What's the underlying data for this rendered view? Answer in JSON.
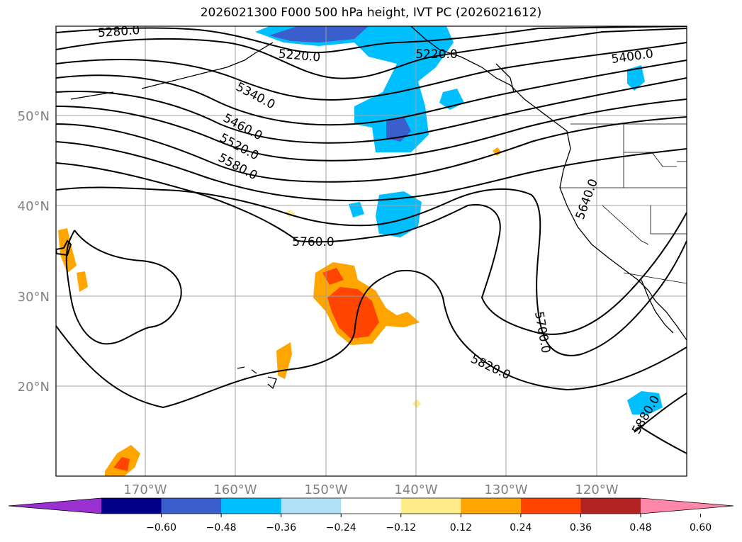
{
  "title": "2026021300 F000 500 hPa height, IVT PC (2026021612)",
  "lat_labels": [
    "50°N",
    "40°N",
    "30°N",
    "20°N"
  ],
  "lon_labels": [
    "170°W",
    "160°W",
    "150°W",
    "140°W",
    "130°W",
    "120°W"
  ],
  "contour_labels": [
    "5280.0",
    "5220.0",
    "5220.0",
    "5400.0",
    "5340.0",
    "5460.0",
    "5520.0",
    "5580.0",
    "5640.0",
    "5760.0",
    "5700.0",
    "5820.0",
    "5880.0"
  ],
  "colorbar": {
    "ticks": [
      "−0.60",
      "−0.48",
      "−0.36",
      "−0.24",
      "−0.12",
      "0.12",
      "0.24",
      "0.36",
      "0.48",
      "0.60"
    ],
    "colors": [
      "#9b30d0",
      "#00008b",
      "#3a5fcd",
      "#00bfff",
      "#b0e0f6",
      "#ffffff",
      "#ffec8b",
      "#ffa500",
      "#ff4500",
      "#b22222",
      "#ff88aa"
    ]
  }
}
